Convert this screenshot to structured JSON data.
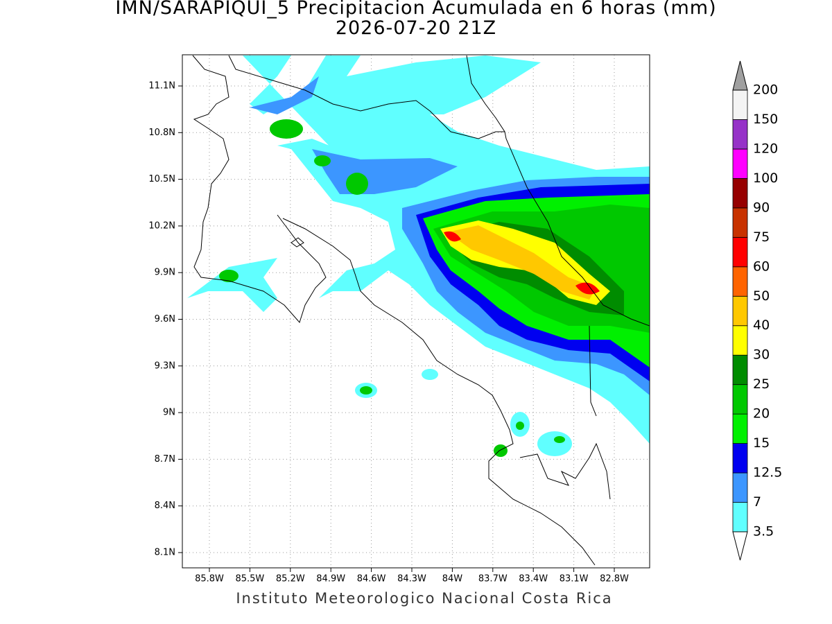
{
  "title": "IMN/SARAPIQUI_5 Precipitacion Acumulada en 6 horas (mm)",
  "subtitle": "2026-07-20 21Z",
  "lon_ticks": [
    "85.8W",
    "85.5W",
    "85.2W",
    "84.9W",
    "84.6W",
    "84.3W",
    "84W",
    "83.7W",
    "83.4W",
    "83.1W",
    "82.8W"
  ],
  "lat_ticks": [
    "11.1N",
    "10.8N",
    "10.5N",
    "10.2N",
    "9.9N",
    "9.6N",
    "9.3N",
    "9N",
    "8.7N",
    "8.4N",
    "8.1N"
  ],
  "colorbar": {
    "levels": [
      3.5,
      7,
      12.5,
      15,
      20,
      25,
      30,
      40,
      50,
      60,
      75,
      90,
      100,
      120,
      150,
      200
    ],
    "colors": [
      "#60ffff",
      "#3c96ff",
      "#0000f0",
      "#00f000",
      "#00c800",
      "#008c00",
      "#ffff00",
      "#ffc800",
      "#ff6400",
      "#ff0000",
      "#c83200",
      "#960000",
      "#ff00ff",
      "#9632c8",
      "#f4f4f4"
    ],
    "over_color": "#a0a0a0",
    "under_color": "#ffffff"
  },
  "footer": "Instituto Meteorologico Nacional Costa Rica"
}
